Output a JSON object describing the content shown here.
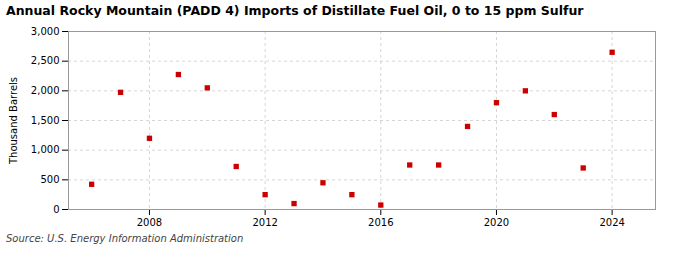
{
  "chart_data": {
    "type": "scatter",
    "title": "Annual Rocky Mountain (PADD 4) Imports of Distillate Fuel Oil, 0 to 15 ppm Sulfur",
    "ylabel": "Thousand Barrels",
    "source": "Source: U.S. Energy Information Administration",
    "x": [
      2006,
      2007,
      2008,
      2009,
      2010,
      2011,
      2012,
      2013,
      2014,
      2015,
      2016,
      2017,
      2018,
      2019,
      2020,
      2021,
      2022,
      2023,
      2024
    ],
    "values": [
      425,
      1975,
      1200,
      2275,
      2050,
      725,
      250,
      100,
      450,
      250,
      75,
      750,
      750,
      1400,
      1800,
      2000,
      1600,
      700,
      2650
    ],
    "color": "#cc0000",
    "marker": "square",
    "xlim": [
      2005.2,
      2025.5
    ],
    "xticks": [
      2008,
      2012,
      2016,
      2020,
      2024
    ],
    "ylim": [
      0,
      3000
    ],
    "yticks": [
      0,
      500,
      {
        "value": 1000,
        "label": "1,000"
      },
      {
        "value": 1500,
        "label": "1,500"
      },
      {
        "value": 2000,
        "label": "2,000"
      },
      {
        "value": 2500,
        "label": "2,500"
      },
      {
        "value": 3000,
        "label": "3,000"
      }
    ],
    "grid": true
  }
}
